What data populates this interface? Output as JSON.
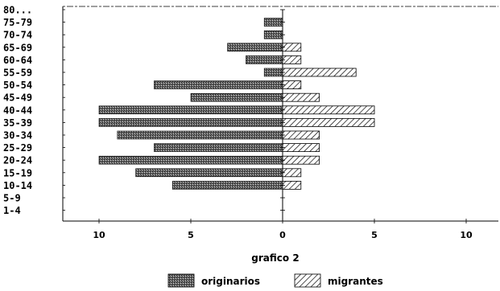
{
  "chart_data": {
    "type": "bar",
    "orientation": "horizontal-population-pyramid",
    "categories": [
      "80...",
      "75-79",
      "70-74",
      "65-69",
      "60-64",
      "55-59",
      "50-54",
      "45-49",
      "40-44",
      "35-39",
      "30-34",
      "25-29",
      "20-24",
      "15-19",
      "10-14",
      "5-9",
      "1-4"
    ],
    "series": [
      {
        "name": "originarios",
        "side": "left",
        "values": [
          0,
          1,
          1,
          3,
          2,
          1,
          7,
          5,
          10,
          10,
          9,
          7,
          10,
          8,
          6,
          0,
          0
        ]
      },
      {
        "name": "migrantes",
        "side": "right",
        "values": [
          0,
          0,
          0,
          1,
          1,
          4,
          1,
          2,
          5,
          5,
          2,
          2,
          2,
          1,
          1,
          0,
          0
        ]
      }
    ],
    "x_tick_labels": [
      "10",
      "5",
      "0",
      "5",
      "10"
    ],
    "xlim": [
      -10,
      10
    ],
    "title": "grafico 2",
    "legend_position": "bottom-center",
    "colors": {
      "originarios": "#555555",
      "migrantes": "#ffffff",
      "axis": "#000000"
    }
  },
  "legend": {
    "items": [
      {
        "label": "originarios"
      },
      {
        "label": "migrantes"
      }
    ]
  }
}
